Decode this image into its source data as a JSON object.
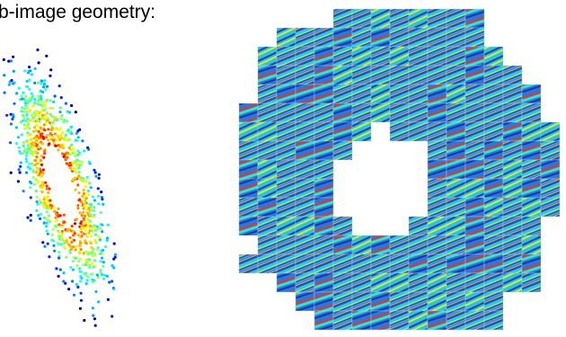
{
  "caption_fragment": "b-image geometry:"
}
